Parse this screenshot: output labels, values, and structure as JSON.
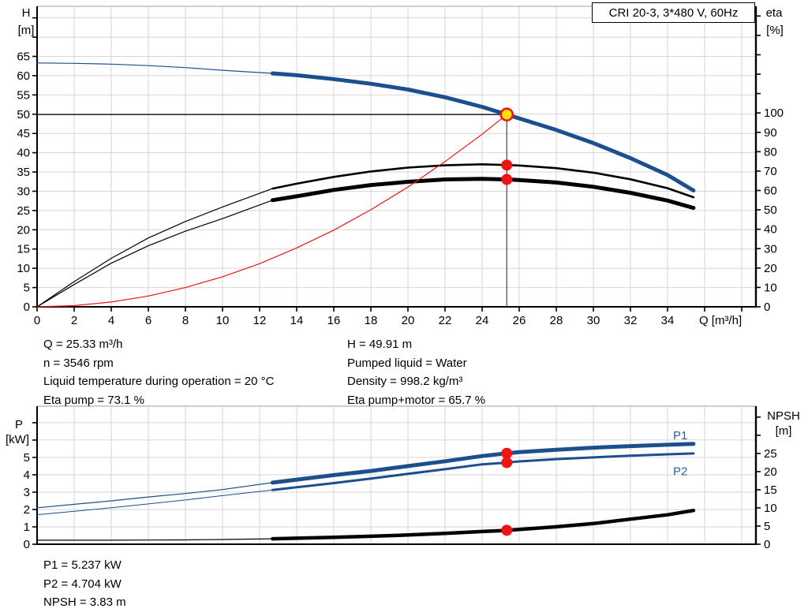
{
  "title": "CRI 20-3, 3*480 V, 60Hz",
  "colors": {
    "blue": "#1c4f8e",
    "black": "#000000",
    "red": "#ee1414",
    "yellow": "#ffe40a",
    "label_blue": "#2460a8",
    "grid": "#d6d6d6",
    "border": "#bdbdbd"
  },
  "info_top": {
    "left": [
      "Q = 25.33 m³/h",
      "n = 3546 rpm",
      "Liquid temperature during operation = 20 °C",
      "Eta pump = 73.1 %"
    ],
    "right": [
      "H = 49.91 m",
      "Pumped liquid = Water",
      "Density = 998.2 kg/m³",
      "Eta pump+motor = 65.7 %"
    ]
  },
  "info_bottom": [
    "P1 = 5.237 kW",
    "P2 = 4.704 kW",
    "NPSH = 3.83 m"
  ],
  "chart_data": [
    {
      "id": "qh-eta-chart",
      "type": "line",
      "title": "CRI 20-3, 3*480 V, 60Hz",
      "x": {
        "label": "Q [m³/h]",
        "min": 0,
        "max": 38.8,
        "tick_step": 2,
        "tick_label_max": 34
      },
      "y_left": {
        "name": "H",
        "unit": "[m]",
        "min": 0,
        "max": 78,
        "tick_step": 5,
        "tick_label_max": 65,
        "grid_step": 5
      },
      "y_right": {
        "name": "eta",
        "unit": "[%]",
        "min": 0,
        "max": 155,
        "tick_step": 10,
        "tick_label_max": 100
      },
      "duty_point": {
        "q": 25.33,
        "h": 49.91
      },
      "markers": [
        {
          "q": 25.33,
          "v": 73.1,
          "axis": "right"
        },
        {
          "q": 25.33,
          "v": 65.7,
          "axis": "right"
        }
      ],
      "series": [
        {
          "name": "head-curve",
          "axis": "left",
          "color": "blue",
          "split_q": 12.7,
          "w_thin": 1.2,
          "w_thick": 5,
          "points": [
            [
              0,
              63.3
            ],
            [
              2,
              63.2
            ],
            [
              4,
              63.0
            ],
            [
              6,
              62.6
            ],
            [
              8,
              62.1
            ],
            [
              10,
              61.4
            ],
            [
              12.7,
              60.6
            ],
            [
              14,
              60.1
            ],
            [
              16,
              59.1
            ],
            [
              18,
              57.9
            ],
            [
              20,
              56.4
            ],
            [
              22,
              54.4
            ],
            [
              24,
              51.9
            ],
            [
              25.33,
              49.91
            ],
            [
              26,
              48.9
            ],
            [
              28,
              45.9
            ],
            [
              30,
              42.5
            ],
            [
              32,
              38.6
            ],
            [
              34,
              34.2
            ],
            [
              35.4,
              30.2
            ]
          ]
        },
        {
          "name": "eta-pump-curve",
          "axis": "right",
          "color": "black",
          "split_q": 12.7,
          "w_thin": 1.2,
          "w_thick": 2.6,
          "points": [
            [
              0,
              0
            ],
            [
              2,
              13
            ],
            [
              4,
              25
            ],
            [
              6,
              35.5
            ],
            [
              8,
              44
            ],
            [
              10,
              51.5
            ],
            [
              12.7,
              61
            ],
            [
              14,
              63.5
            ],
            [
              16,
              67
            ],
            [
              18,
              69.8
            ],
            [
              20,
              71.8
            ],
            [
              22,
              73
            ],
            [
              24,
              73.5
            ],
            [
              25.33,
              73.1
            ],
            [
              26,
              72.9
            ],
            [
              28,
              71.5
            ],
            [
              30,
              69.2
            ],
            [
              32,
              65.8
            ],
            [
              34,
              61.2
            ],
            [
              35.4,
              56.5
            ]
          ]
        },
        {
          "name": "eta-pump-motor-curve",
          "axis": "right",
          "color": "black",
          "split_q": 12.7,
          "w_thin": 1.2,
          "w_thick": 5,
          "points": [
            [
              0,
              0
            ],
            [
              2,
              11.5
            ],
            [
              4,
              22.5
            ],
            [
              6,
              31.5
            ],
            [
              8,
              39
            ],
            [
              10,
              45.5
            ],
            [
              12.7,
              55
            ],
            [
              14,
              57
            ],
            [
              16,
              60.3
            ],
            [
              18,
              62.8
            ],
            [
              20,
              64.5
            ],
            [
              22,
              65.7
            ],
            [
              24,
              66
            ],
            [
              25.33,
              65.7
            ],
            [
              26,
              65.4
            ],
            [
              28,
              64.1
            ],
            [
              30,
              61.9
            ],
            [
              32,
              58.8
            ],
            [
              34,
              54.8
            ],
            [
              35.4,
              51
            ]
          ]
        },
        {
          "name": "system-curve",
          "axis": "left",
          "color": "red",
          "w_thin": 1.2,
          "points": [
            [
              0,
              0
            ],
            [
              2,
              0.31
            ],
            [
              4,
              1.25
            ],
            [
              6,
              2.8
            ],
            [
              8,
              5.0
            ],
            [
              10,
              7.8
            ],
            [
              12,
              11.2
            ],
            [
              14,
              15.3
            ],
            [
              16,
              19.9
            ],
            [
              18,
              25.2
            ],
            [
              20,
              31.1
            ],
            [
              22,
              37.7
            ],
            [
              24,
              44.8
            ],
            [
              25.33,
              49.91
            ]
          ]
        }
      ]
    },
    {
      "id": "power-npsh-chart",
      "type": "line",
      "x": {
        "label": "",
        "min": 0,
        "max": 38.8,
        "tick_step": 2,
        "tick_label_max": -1
      },
      "y_left": {
        "name": "P",
        "unit": "[kW]",
        "min": 0,
        "max": 7.95,
        "tick_step": 1,
        "tick_label_max": 5,
        "grid_step": 1
      },
      "y_right": {
        "name": "NPSH",
        "unit": "[m]",
        "min": 0,
        "max": 38,
        "tick_step": 5,
        "tick_label_max": 25
      },
      "markers": [
        {
          "q": 25.33,
          "v": 5.237,
          "axis": "left"
        },
        {
          "q": 25.33,
          "v": 4.704,
          "axis": "left"
        },
        {
          "q": 25.33,
          "v": 3.83,
          "axis": "right"
        }
      ],
      "labels": [
        {
          "text": "P1",
          "x_q": 34.3,
          "y_val": 6.05,
          "axis": "left"
        },
        {
          "text": "P2",
          "x_q": 34.3,
          "y_val": 3.98,
          "axis": "left"
        }
      ],
      "series": [
        {
          "name": "p1-curve",
          "axis": "left",
          "color": "blue",
          "split_q": 12.7,
          "w_thin": 1.2,
          "w_thick": 5,
          "points": [
            [
              0,
              2.1
            ],
            [
              2,
              2.3
            ],
            [
              4,
              2.5
            ],
            [
              6,
              2.72
            ],
            [
              8,
              2.92
            ],
            [
              10,
              3.15
            ],
            [
              12.7,
              3.55
            ],
            [
              14,
              3.72
            ],
            [
              16,
              3.98
            ],
            [
              18,
              4.22
            ],
            [
              20,
              4.5
            ],
            [
              22,
              4.78
            ],
            [
              24,
              5.08
            ],
            [
              25.33,
              5.237
            ],
            [
              26,
              5.3
            ],
            [
              28,
              5.44
            ],
            [
              30,
              5.56
            ],
            [
              32,
              5.65
            ],
            [
              34,
              5.73
            ],
            [
              35.4,
              5.78
            ]
          ]
        },
        {
          "name": "p2-curve",
          "axis": "left",
          "color": "blue",
          "split_q": 12.7,
          "w_thin": 1,
          "w_thick": 3,
          "points": [
            [
              0,
              1.7
            ],
            [
              2,
              1.9
            ],
            [
              4,
              2.1
            ],
            [
              6,
              2.32
            ],
            [
              8,
              2.55
            ],
            [
              10,
              2.8
            ],
            [
              12.7,
              3.12
            ],
            [
              14,
              3.28
            ],
            [
              16,
              3.52
            ],
            [
              18,
              3.78
            ],
            [
              20,
              4.05
            ],
            [
              22,
              4.32
            ],
            [
              24,
              4.6
            ],
            [
              25.33,
              4.704
            ],
            [
              26,
              4.77
            ],
            [
              28,
              4.9
            ],
            [
              30,
              5.0
            ],
            [
              32,
              5.1
            ],
            [
              34,
              5.18
            ],
            [
              35.4,
              5.23
            ]
          ]
        },
        {
          "name": "npsh-curve",
          "axis": "right",
          "color": "black",
          "split_q": 12.7,
          "w_thin": 1.2,
          "w_thick": 4.5,
          "points": [
            [
              0,
              1.1
            ],
            [
              2,
              1.1
            ],
            [
              4,
              1.1
            ],
            [
              6,
              1.15
            ],
            [
              8,
              1.2
            ],
            [
              10,
              1.3
            ],
            [
              12.7,
              1.5
            ],
            [
              14,
              1.65
            ],
            [
              16,
              1.9
            ],
            [
              18,
              2.2
            ],
            [
              20,
              2.55
            ],
            [
              22,
              3.0
            ],
            [
              24,
              3.5
            ],
            [
              25.33,
              3.83
            ],
            [
              26,
              4.05
            ],
            [
              28,
              4.8
            ],
            [
              30,
              5.7
            ],
            [
              32,
              6.9
            ],
            [
              34,
              8.1
            ],
            [
              35.4,
              9.3
            ]
          ]
        }
      ]
    }
  ]
}
